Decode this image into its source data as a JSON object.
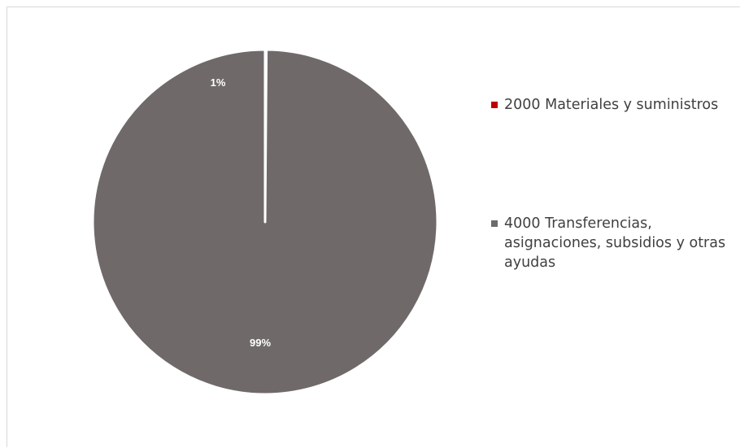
{
  "chart_data": {
    "type": "pie",
    "title": "",
    "slices": [
      {
        "name": "2000 Materiales y suministros",
        "value": 1,
        "label": "1%",
        "color": "#c00000"
      },
      {
        "name": "4000 Transferencias, asignaciones, subsidios y otras ayudas",
        "value": 99,
        "label": "99%",
        "color": "#6f6a69"
      }
    ],
    "legend_position": "right",
    "slice_border_color": "#ffffff"
  }
}
